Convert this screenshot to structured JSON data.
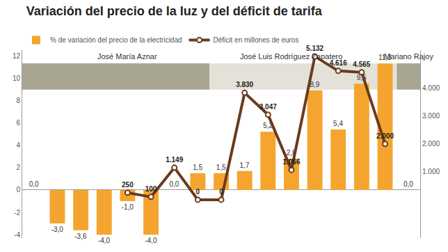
{
  "chart_data": {
    "type": "bar",
    "title": "Variación del precio de la luz y del déficit de tarifa",
    "categories": [
      null,
      null,
      null,
      null,
      null,
      null,
      null,
      null,
      null,
      null,
      null,
      null,
      null,
      null,
      null,
      null,
      null
    ],
    "series": [
      {
        "name": "% de variación del precio de la electricidad",
        "type": "bar",
        "color": "#f5a52f",
        "values": [
          0.0,
          -3.0,
          -3.6,
          -4.0,
          -1.0,
          -4.0,
          0.0,
          1.5,
          1.5,
          1.7,
          5.2,
          2.8,
          8.9,
          5.4,
          9.5,
          11.3,
          0.0
        ],
        "value_labels": [
          "0,0",
          "-3,0",
          "-3,6",
          "-4,0",
          "-1,0",
          "-4,0",
          "0,0",
          "1,5",
          "1,5",
          "1,7",
          "5,2",
          "2,8",
          "8,9",
          "5,4",
          "9,5",
          "11,3",
          "0,0"
        ]
      },
      {
        "name": "Déficit en millones de euros",
        "type": "line",
        "axis": "y2",
        "color": "#6b3a1e",
        "marker": "circle",
        "values": [
          null,
          null,
          null,
          null,
          250,
          100,
          1149,
          0,
          0,
          3830,
          3047,
          1066,
          5132,
          4616,
          4565,
          2000,
          null
        ],
        "value_labels": [
          null,
          null,
          null,
          null,
          "250",
          "100",
          "1.149",
          "0",
          "0",
          "3.830",
          "3.047",
          "1.066",
          "5.132",
          "4.616",
          "4.565",
          "2.000",
          null
        ]
      }
    ],
    "ylim": [
      -4.3,
      12.5
    ],
    "yticks": [
      -4,
      -2,
      0,
      2,
      4,
      6,
      8,
      10,
      12
    ],
    "y2lim": [
      -1375,
      5360
    ],
    "y2ticks": [
      {
        "value": 1000,
        "label": "1.000"
      },
      {
        "value": 2000,
        "label": "2.000"
      },
      {
        "value": 3000,
        "label": "3.000"
      },
      {
        "value": 4000,
        "label": "4.000"
      }
    ],
    "annotations": [
      {
        "text": "José María Aznar",
        "x": 4
      },
      {
        "text": "José Luis Rodríguez Zapatero",
        "x": 11
      },
      {
        "text": "Mariano Rajoy",
        "x": 16
      }
    ],
    "data_labels": true,
    "grid": false,
    "legend": "top-left"
  }
}
